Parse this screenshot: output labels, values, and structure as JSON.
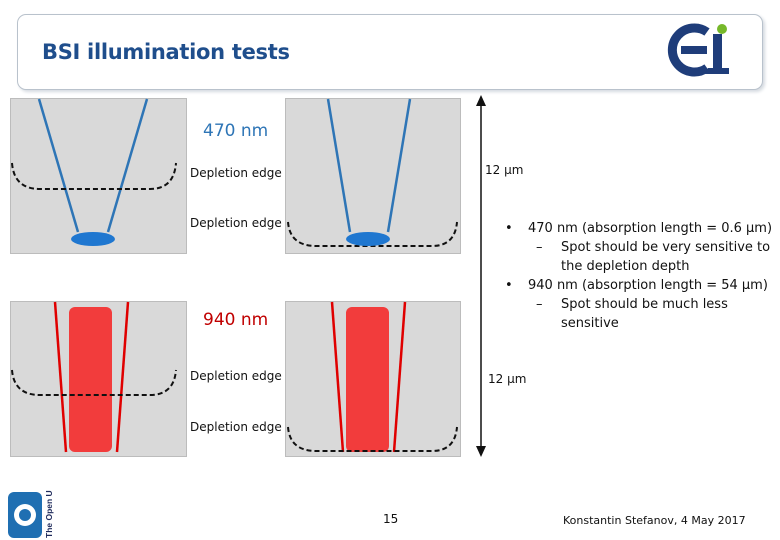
{
  "header": {
    "title": "BSI illumination tests"
  },
  "labels": {
    "wavelength_blue": "470 nm",
    "wavelength_red": "940 nm",
    "depletion_edge": "Depletion edge",
    "thickness_top": "12 µm",
    "thickness_bottom": "12 µm"
  },
  "bullets": [
    {
      "text": "470 nm (absorption length = 0.6 µm)",
      "sub": [
        "Spot should be very sensitive to the depletion depth"
      ]
    },
    {
      "text": "940 nm (absorption length = 54 µm)",
      "sub": [
        "Spot should be much less sensitive"
      ]
    }
  ],
  "footer": {
    "page_number": "15",
    "author_date": "Konstantin Stefanov, 4 May 2017",
    "university": "The Open University"
  },
  "colors": {
    "title": "#1f4e8c",
    "blue_light": "#2e75b6",
    "blue_spot": "#1f77d0",
    "red_light": "#e00000",
    "red_column": "#f23c3c",
    "panel": "#d9d9d9"
  },
  "icons": {
    "bullet": "•",
    "dash": "–"
  }
}
